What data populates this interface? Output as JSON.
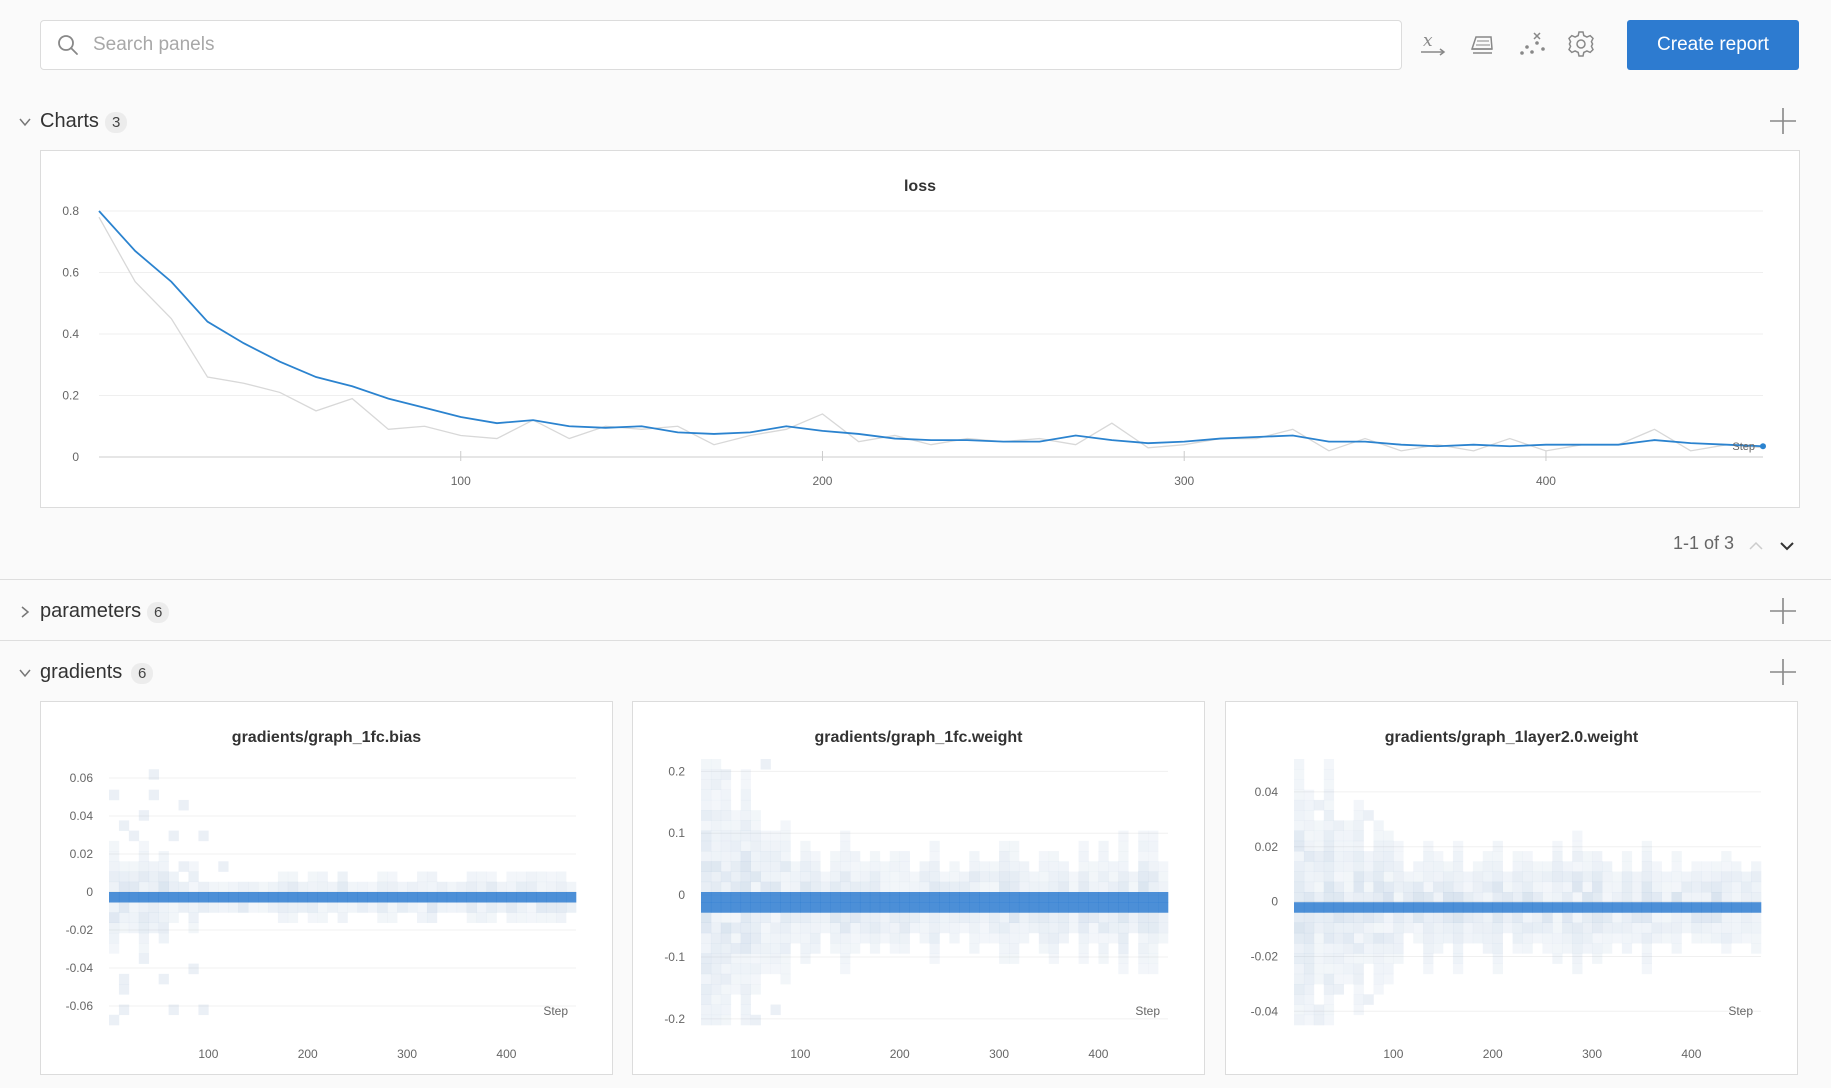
{
  "toolbar": {
    "search_placeholder": "Search panels",
    "create_report_label": "Create report",
    "icons": [
      "x-axis-icon",
      "eraser-icon",
      "scatter-icon",
      "gear-icon"
    ]
  },
  "sections": {
    "charts": {
      "title": "Charts",
      "count": "3",
      "expanded": true
    },
    "parameters": {
      "title": "parameters",
      "count": "6",
      "expanded": false
    },
    "gradients": {
      "title": "gradients",
      "count": "6",
      "expanded": true
    }
  },
  "pager": {
    "text": "1-1 of 3"
  },
  "colors": {
    "accent": "#2d7bd0",
    "smoothed_line": "#2b83cf",
    "raw_line": "#d8d8d8"
  },
  "chart_data": [
    {
      "type": "line",
      "title": "loss",
      "xlabel": "Step",
      "ylabel": "",
      "xlim": [
        0,
        460
      ],
      "ylim": [
        0,
        0.8
      ],
      "x_ticks": [
        "100",
        "200",
        "300",
        "400"
      ],
      "y_ticks": [
        "0",
        "0.2",
        "0.4",
        "0.6",
        "0.8"
      ],
      "series": [
        {
          "role": "smoothed",
          "x": [
            0,
            10,
            20,
            30,
            40,
            50,
            60,
            70,
            80,
            90,
            100,
            110,
            120,
            130,
            140,
            150,
            160,
            170,
            180,
            190,
            200,
            210,
            220,
            230,
            240,
            250,
            260,
            270,
            280,
            290,
            300,
            310,
            320,
            330,
            340,
            350,
            360,
            370,
            380,
            390,
            400,
            410,
            420,
            430,
            440,
            450,
            460
          ],
          "values": [
            0.8,
            0.67,
            0.57,
            0.44,
            0.37,
            0.31,
            0.26,
            0.23,
            0.19,
            0.16,
            0.13,
            0.11,
            0.12,
            0.1,
            0.095,
            0.1,
            0.08,
            0.075,
            0.08,
            0.1,
            0.085,
            0.075,
            0.06,
            0.055,
            0.055,
            0.05,
            0.05,
            0.07,
            0.055,
            0.045,
            0.05,
            0.06,
            0.065,
            0.07,
            0.05,
            0.05,
            0.04,
            0.035,
            0.04,
            0.035,
            0.04,
            0.04,
            0.04,
            0.055,
            0.045,
            0.04,
            0.035
          ]
        },
        {
          "role": "raw",
          "x": [
            0,
            10,
            20,
            30,
            40,
            50,
            60,
            70,
            80,
            90,
            100,
            110,
            120,
            130,
            140,
            150,
            160,
            170,
            180,
            190,
            200,
            210,
            220,
            230,
            240,
            250,
            260,
            270,
            280,
            290,
            300,
            310,
            320,
            330,
            340,
            350,
            360,
            370,
            380,
            390,
            400,
            410,
            420,
            430,
            440,
            450,
            460
          ],
          "values": [
            0.78,
            0.57,
            0.45,
            0.26,
            0.24,
            0.21,
            0.15,
            0.19,
            0.09,
            0.1,
            0.07,
            0.06,
            0.12,
            0.06,
            0.1,
            0.09,
            0.1,
            0.04,
            0.07,
            0.09,
            0.14,
            0.05,
            0.07,
            0.04,
            0.06,
            0.05,
            0.06,
            0.04,
            0.11,
            0.03,
            0.04,
            0.06,
            0.06,
            0.09,
            0.02,
            0.06,
            0.02,
            0.04,
            0.02,
            0.06,
            0.02,
            0.04,
            0.04,
            0.09,
            0.02,
            0.04,
            0.03
          ]
        }
      ]
    },
    {
      "type": "heatmap",
      "title": "gradients/graph_1fc.bias",
      "xlabel": "Step",
      "xlim": [
        0,
        470
      ],
      "x_ticks": [
        "100",
        "200",
        "300",
        "400"
      ],
      "ylim": [
        -0.07,
        0.07
      ],
      "y_ticks": [
        "0.06",
        "0.04",
        "0.02",
        "0",
        "-0.02",
        "-0.04",
        "-0.06"
      ],
      "y_tick_values": [
        0.06,
        0.04,
        0.02,
        0,
        -0.02,
        -0.04,
        -0.06
      ],
      "center": -0.003,
      "spread": 0.01,
      "outlier_range": [
        0.065,
        -0.065
      ]
    },
    {
      "type": "heatmap",
      "title": "gradients/graph_1fc.weight",
      "xlabel": "Step",
      "xlim": [
        0,
        470
      ],
      "x_ticks": [
        "100",
        "200",
        "300",
        "400"
      ],
      "ylim": [
        -0.21,
        0.22
      ],
      "y_ticks": [
        "0.2",
        "0.1",
        "0",
        "-0.1",
        "-0.2"
      ],
      "y_tick_values": [
        0.2,
        0.1,
        0,
        -0.1,
        -0.2
      ],
      "center": -0.012,
      "spread": 0.08,
      "outlier_range": [
        0.2,
        -0.2
      ]
    },
    {
      "type": "heatmap",
      "title": "gradients/graph_1layer2.0.weight",
      "xlabel": "Step",
      "xlim": [
        0,
        470
      ],
      "x_ticks": [
        "100",
        "200",
        "300",
        "400"
      ],
      "ylim": [
        -0.045,
        0.052
      ],
      "y_ticks": [
        "0.04",
        "0.02",
        "0",
        "-0.02",
        "-0.04"
      ],
      "y_tick_values": [
        0.04,
        0.02,
        0,
        -0.02,
        -0.04
      ],
      "center": -0.001,
      "spread": 0.018,
      "outlier_range": [
        0.05,
        -0.045
      ]
    }
  ]
}
